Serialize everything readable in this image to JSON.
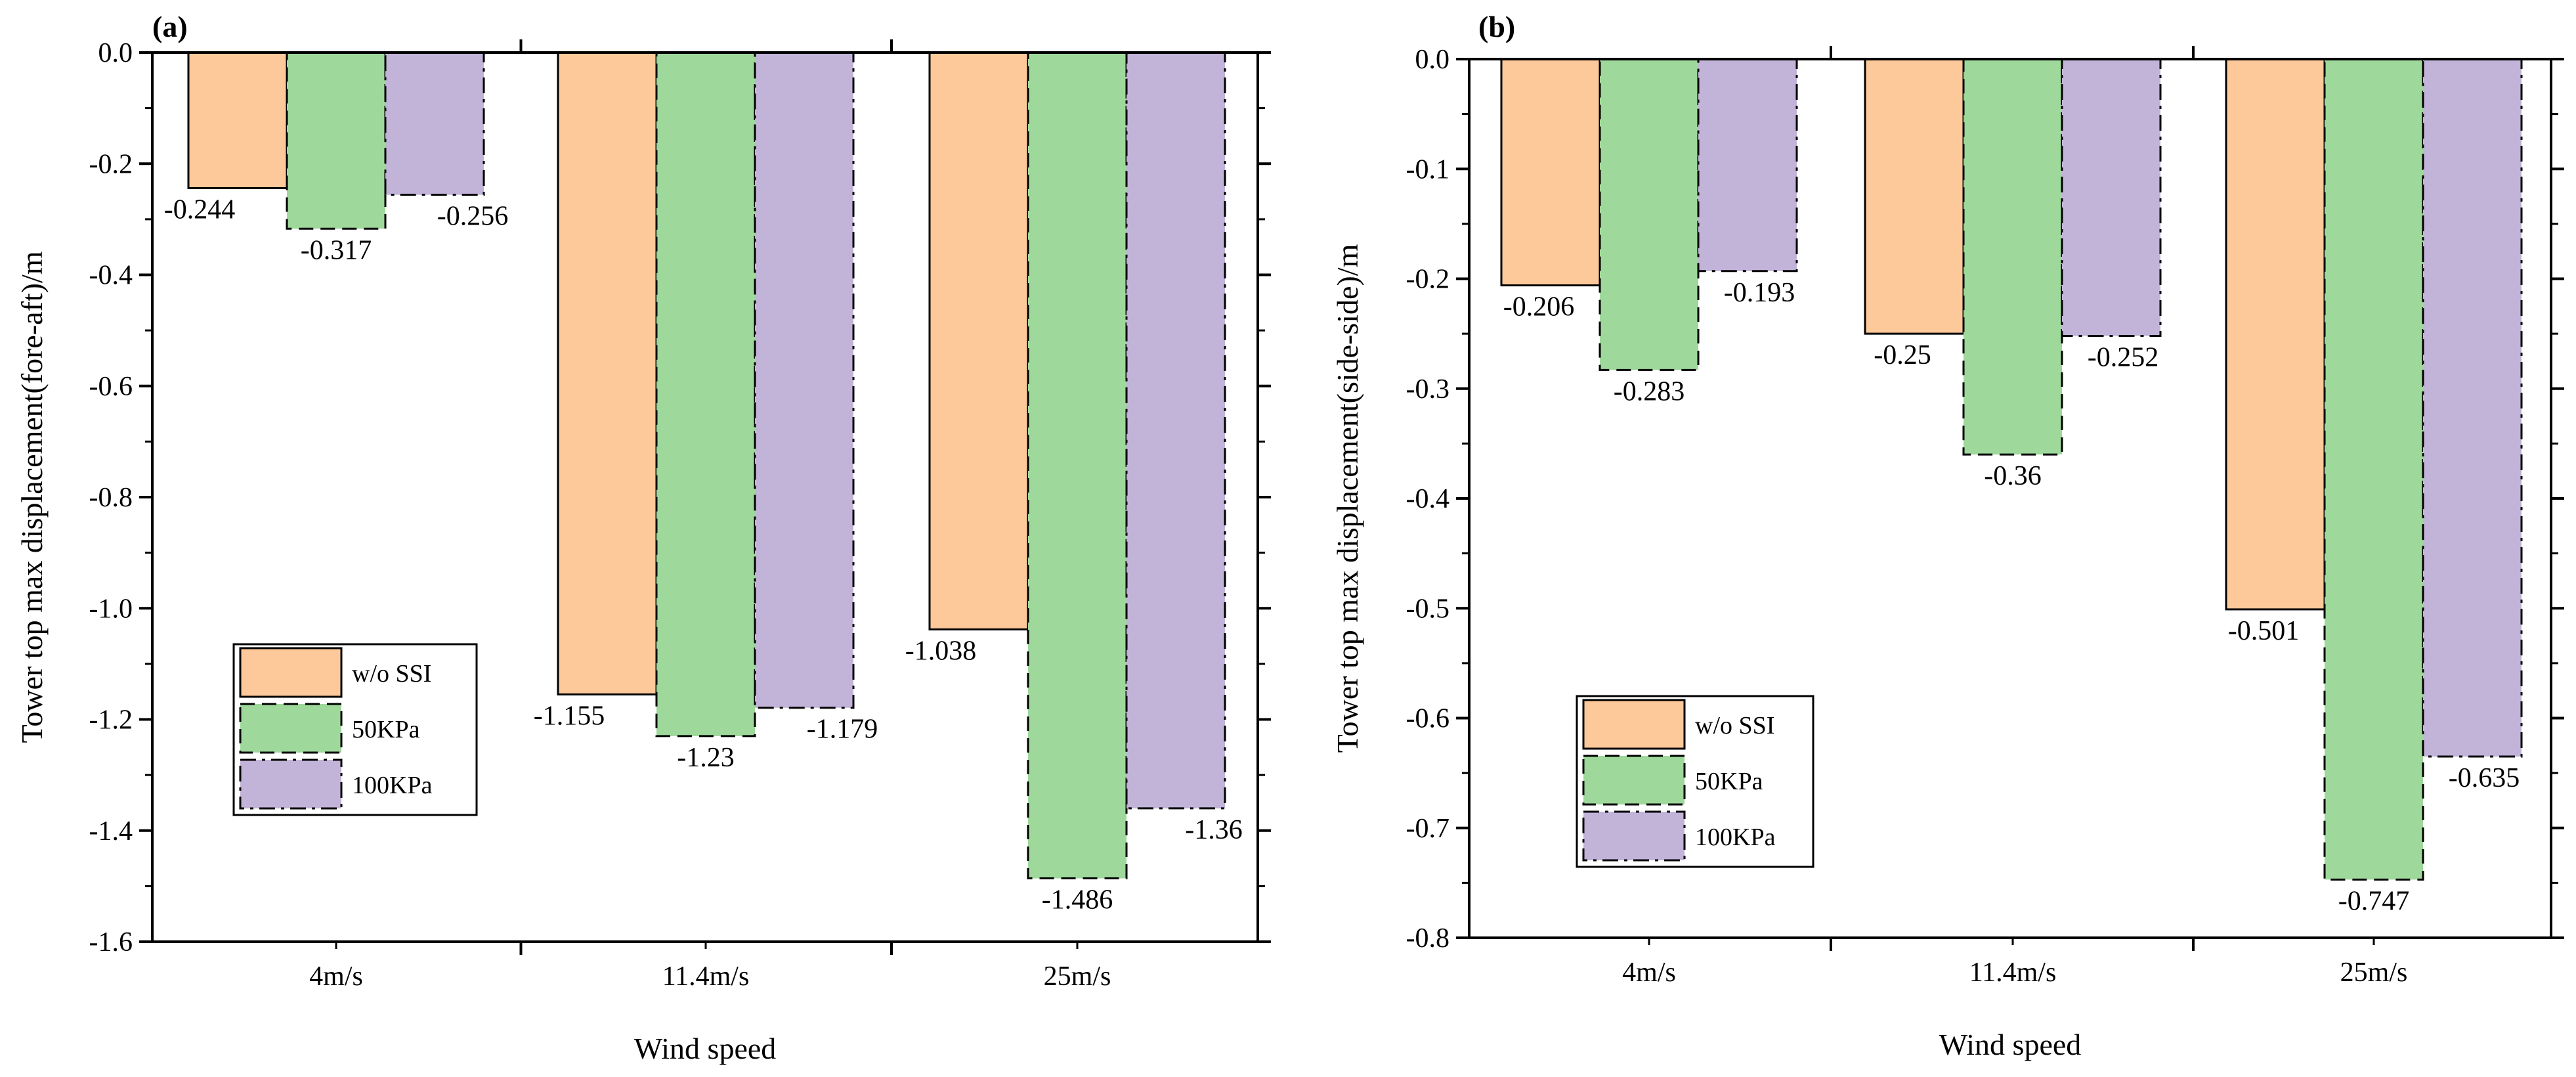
{
  "chart_data": [
    {
      "panel_label": "(a)",
      "type": "bar",
      "categories": [
        "4m/s",
        "11.4m/s",
        "25m/s"
      ],
      "series": [
        {
          "name": "w/o SSI",
          "values": [
            -0.244,
            -1.155,
            -1.038
          ],
          "labels": [
            "-0.244",
            "-1.155",
            "-1.038"
          ],
          "color": "#fdc99a",
          "line_style": "solid"
        },
        {
          "name": "50KPa",
          "values": [
            -0.317,
            -1.23,
            -1.486
          ],
          "labels": [
            "-0.317",
            "-1.23",
            "-1.486"
          ],
          "color": "#9ed99b",
          "line_style": "dashed"
        },
        {
          "name": "100KPa",
          "values": [
            -0.256,
            -1.179,
            -1.36
          ],
          "labels": [
            "-0.256",
            "-1.179",
            "-1.36"
          ],
          "color": "#c2b4d8",
          "line_style": "dashdot"
        }
      ],
      "ylim": [
        -1.6,
        0
      ],
      "yticks": [
        0,
        -0.2,
        -0.4,
        -0.6,
        -0.8,
        -1.0,
        -1.2,
        -1.4,
        -1.6
      ],
      "ytick_labels": [
        "0.0",
        "-0.2",
        "-0.4",
        "-0.6",
        "-0.8",
        "-1.0",
        "-1.2",
        "-1.4",
        "-1.6"
      ],
      "xlabel": "Wind speed",
      "ylabel": "Tower top max displacement(fore-aft)/m",
      "legend_position": "lower-left"
    },
    {
      "panel_label": "(b)",
      "type": "bar",
      "categories": [
        "4m/s",
        "11.4m/s",
        "25m/s"
      ],
      "series": [
        {
          "name": "w/o SSI",
          "values": [
            -0.206,
            -0.25,
            -0.501
          ],
          "labels": [
            "-0.206",
            "-0.25",
            "-0.501"
          ],
          "color": "#fdc99a",
          "line_style": "solid"
        },
        {
          "name": "50KPa",
          "values": [
            -0.283,
            -0.36,
            -0.747
          ],
          "labels": [
            "-0.283",
            "-0.36",
            "-0.747"
          ],
          "color": "#9ed99b",
          "line_style": "dashed"
        },
        {
          "name": "100KPa",
          "values": [
            -0.193,
            -0.252,
            -0.635
          ],
          "labels": [
            "-0.193",
            "-0.252",
            "-0.635"
          ],
          "color": "#c2b4d8",
          "line_style": "dashdot"
        }
      ],
      "ylim": [
        -0.8,
        0
      ],
      "yticks": [
        0,
        -0.1,
        -0.2,
        -0.3,
        -0.4,
        -0.5,
        -0.6,
        -0.7,
        -0.8
      ],
      "ytick_labels": [
        "0.0",
        "-0.1",
        "-0.2",
        "-0.3",
        "-0.4",
        "-0.5",
        "-0.6",
        "-0.7",
        "-0.8"
      ],
      "xlabel": "Wind speed",
      "ylabel": "Tower top max displacement(side-side)/m",
      "legend_position": "lower-left"
    }
  ]
}
